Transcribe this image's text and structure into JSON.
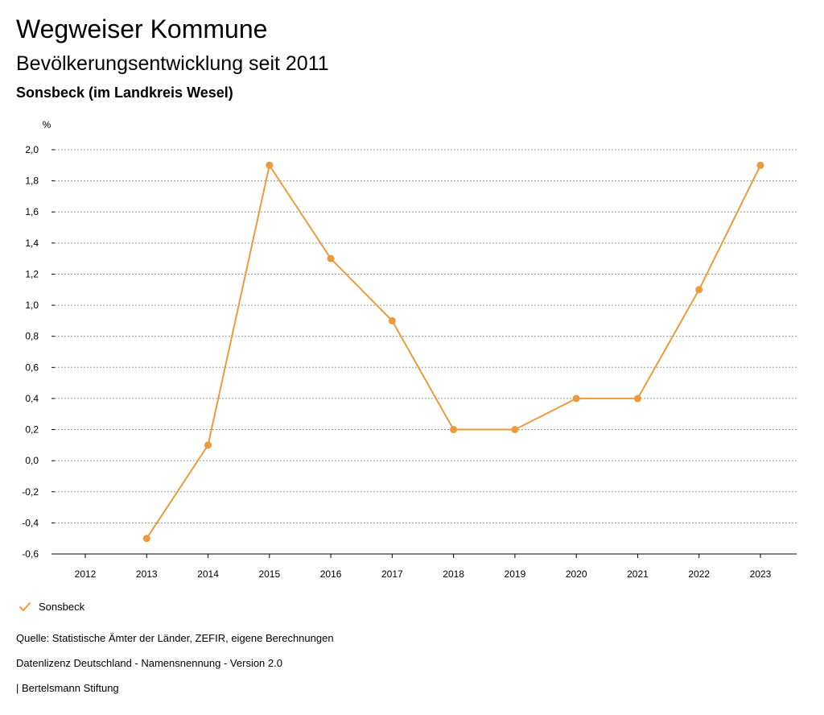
{
  "header": {
    "title": "Wegweiser Kommune",
    "subtitle": "Bevölkerungsentwicklung seit 2011",
    "region": "Sonsbeck (im Landkreis Wesel)"
  },
  "colors": {
    "series": "#ef9a3a",
    "grid": "#999999",
    "axis": "#000000"
  },
  "chart_data": {
    "type": "line",
    "title": "Bevölkerungsentwicklung seit 2011",
    "ylabel": "%",
    "xlabel": "",
    "ylim": [
      -0.6,
      2.0
    ],
    "yticks": [
      "2,0",
      "1,8",
      "1,6",
      "1,4",
      "1,2",
      "1,0",
      "0,8",
      "0,6",
      "0,4",
      "0,2",
      "0,0",
      "-0,2",
      "-0,4",
      "-0,6"
    ],
    "categories": [
      "2012",
      "2013",
      "2014",
      "2015",
      "2016",
      "2017",
      "2018",
      "2019",
      "2020",
      "2021",
      "2022",
      "2023"
    ],
    "series": [
      {
        "name": "Sonsbeck",
        "values": [
          null,
          -0.5,
          0.1,
          1.9,
          1.3,
          0.9,
          0.2,
          0.2,
          0.4,
          0.4,
          1.1,
          1.9
        ]
      }
    ],
    "grid": true,
    "legend": "bottom-left"
  },
  "legend": {
    "label": "Sonsbeck",
    "icon": "check-icon"
  },
  "footer": {
    "source": "Quelle: Statistische Ämter der Länder, ZEFIR, eigene Berechnungen",
    "license": "Datenlizenz Deutschland - Namensnennung - Version 2.0",
    "publisher": "| Bertelsmann Stiftung"
  }
}
